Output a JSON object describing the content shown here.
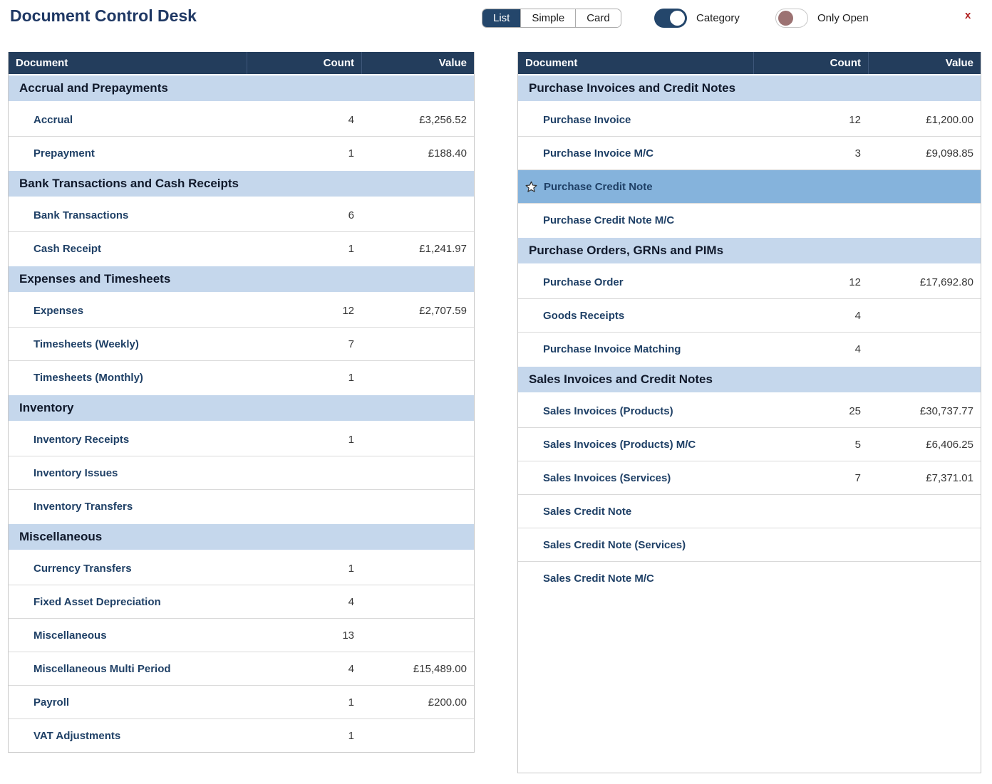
{
  "header": {
    "title": "Document Control Desk",
    "view_modes": [
      {
        "label": "List",
        "selected": true
      },
      {
        "label": "Simple",
        "selected": false
      },
      {
        "label": "Card",
        "selected": false
      }
    ],
    "toggles": [
      {
        "label": "Category",
        "on": true
      },
      {
        "label": "Only Open",
        "on": false
      }
    ],
    "close_label": "x"
  },
  "table_columns": [
    "Document",
    "Count",
    "Value"
  ],
  "left_table": {
    "sections": [
      {
        "category": "Accrual and Prepayments",
        "items": [
          {
            "name": "Accrual",
            "count": "4",
            "value": "£3,256.52"
          },
          {
            "name": "Prepayment",
            "count": "1",
            "value": "£188.40"
          }
        ]
      },
      {
        "category": "Bank Transactions and Cash Receipts",
        "items": [
          {
            "name": "Bank Transactions",
            "count": "6",
            "value": ""
          },
          {
            "name": "Cash Receipt",
            "count": "1",
            "value": "£1,241.97"
          }
        ]
      },
      {
        "category": "Expenses and Timesheets",
        "items": [
          {
            "name": "Expenses",
            "count": "12",
            "value": "£2,707.59"
          },
          {
            "name": "Timesheets (Weekly)",
            "count": "7",
            "value": ""
          },
          {
            "name": "Timesheets (Monthly)",
            "count": "1",
            "value": ""
          }
        ]
      },
      {
        "category": "Inventory",
        "items": [
          {
            "name": "Inventory Receipts",
            "count": "1",
            "value": ""
          },
          {
            "name": "Inventory Issues",
            "count": "",
            "value": ""
          },
          {
            "name": "Inventory Transfers",
            "count": "",
            "value": ""
          }
        ]
      },
      {
        "category": "Miscellaneous",
        "items": [
          {
            "name": "Currency Transfers",
            "count": "1",
            "value": ""
          },
          {
            "name": "Fixed Asset Depreciation",
            "count": "4",
            "value": ""
          },
          {
            "name": "Miscellaneous",
            "count": "13",
            "value": ""
          },
          {
            "name": "Miscellaneous Multi Period",
            "count": "4",
            "value": "£15,489.00"
          },
          {
            "name": "Payroll",
            "count": "1",
            "value": "£200.00"
          },
          {
            "name": "VAT Adjustments",
            "count": "1",
            "value": ""
          }
        ]
      }
    ]
  },
  "right_table": {
    "sections": [
      {
        "category": "Purchase Invoices and Credit Notes",
        "items": [
          {
            "name": "Purchase Invoice",
            "count": "12",
            "value": "£1,200.00"
          },
          {
            "name": "Purchase Invoice M/C",
            "count": "3",
            "value": "£9,098.85"
          },
          {
            "name": "Purchase Credit Note",
            "count": "",
            "value": "",
            "selected": true,
            "starred": true
          },
          {
            "name": "Purchase Credit Note M/C",
            "count": "",
            "value": ""
          }
        ]
      },
      {
        "category": "Purchase Orders, GRNs and PIMs",
        "items": [
          {
            "name": "Purchase Order",
            "count": "12",
            "value": "£17,692.80"
          },
          {
            "name": "Goods Receipts",
            "count": "4",
            "value": ""
          },
          {
            "name": "Purchase Invoice Matching",
            "count": "4",
            "value": ""
          }
        ]
      },
      {
        "category": "Sales Invoices and Credit Notes",
        "items": [
          {
            "name": "Sales Invoices (Products)",
            "count": "25",
            "value": "£30,737.77"
          },
          {
            "name": "Sales Invoices (Products) M/C",
            "count": "5",
            "value": "£6,406.25"
          },
          {
            "name": "Sales Invoices (Services)",
            "count": "7",
            "value": "£7,371.01"
          },
          {
            "name": "Sales Credit Note",
            "count": "",
            "value": ""
          },
          {
            "name": "Sales Credit Note (Services)",
            "count": "",
            "value": ""
          },
          {
            "name": "Sales Credit Note M/C",
            "count": "",
            "value": ""
          }
        ]
      }
    ]
  },
  "colors": {
    "title": "#1F3864",
    "accent": "#24466B",
    "table_header": "#233D5C",
    "category_row": "#C5D7EC",
    "selected_row": "#85B3DC",
    "item_text": "#1F4066",
    "number_text": "#373737",
    "off_knob": "#9C7272",
    "close": "#B22222"
  }
}
